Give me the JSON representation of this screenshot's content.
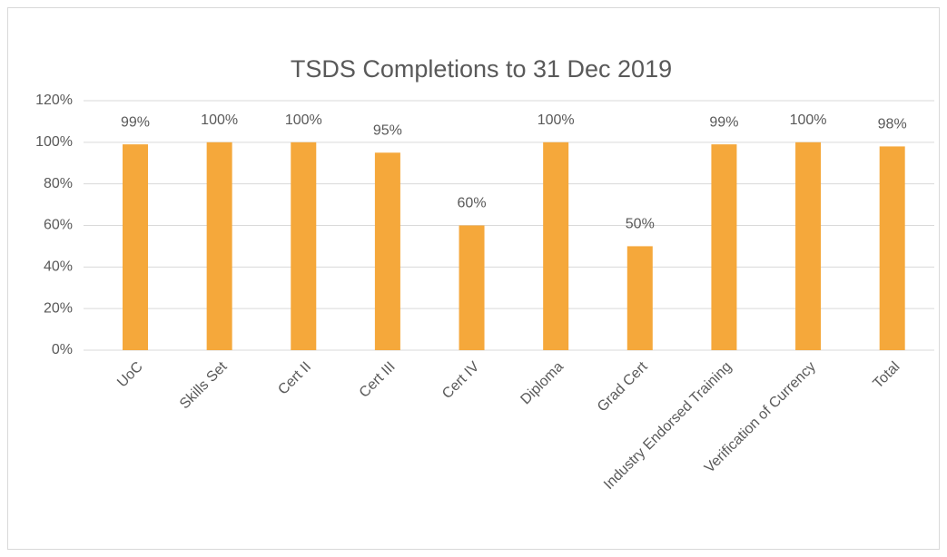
{
  "chart_data": {
    "type": "bar",
    "title": "TSDS Completions to 31 Dec 2019",
    "categories": [
      "UoC",
      "Skills Set",
      "Cert II",
      "Cert III",
      "Cert IV",
      "Diploma",
      "Grad Cert",
      "Industry Endorsed Training",
      "Verification of Currency",
      "Total"
    ],
    "values": [
      99,
      100,
      100,
      95,
      60,
      100,
      50,
      99,
      100,
      98
    ],
    "value_labels": [
      "99%",
      "100%",
      "100%",
      "95%",
      "60%",
      "100%",
      "50%",
      "99%",
      "100%",
      "98%"
    ],
    "color": "#f5a83b",
    "ylim": [
      0,
      120
    ],
    "yticks": [
      {
        "value": 0,
        "label": "0%"
      },
      {
        "value": 20,
        "label": "20%"
      },
      {
        "value": 40,
        "label": "40%"
      },
      {
        "value": 60,
        "label": "60%"
      },
      {
        "value": 80,
        "label": "80%"
      },
      {
        "value": 100,
        "label": "100%"
      },
      {
        "value": 120,
        "label": "120%"
      }
    ],
    "grid": true
  }
}
